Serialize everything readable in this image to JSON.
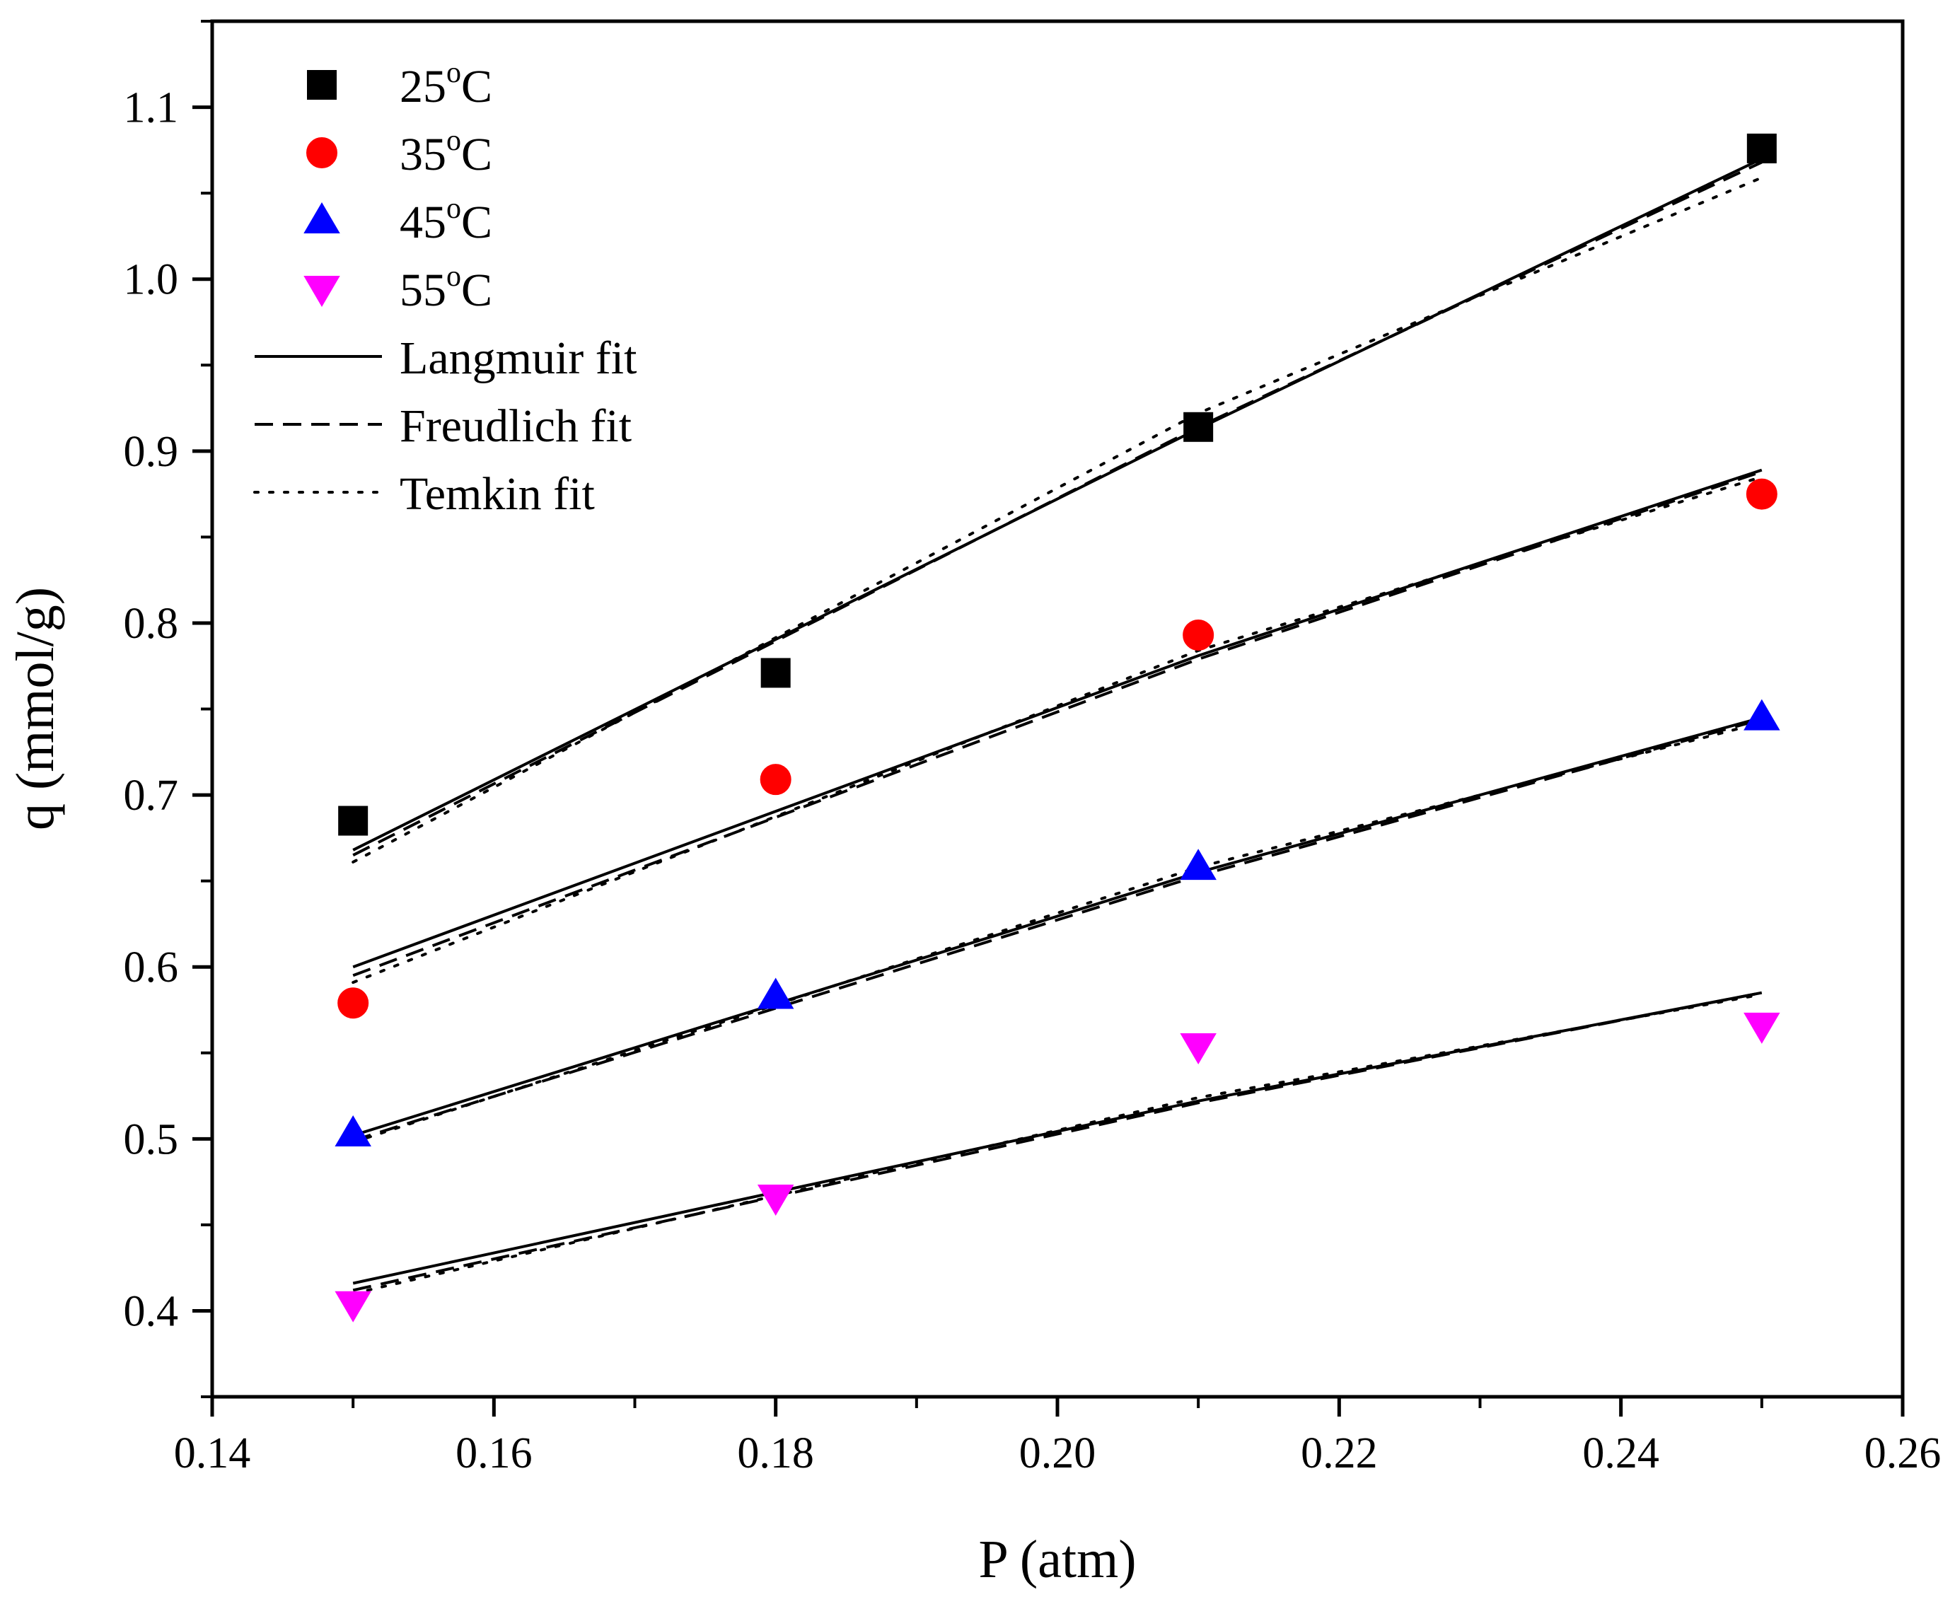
{
  "chart_data": {
    "type": "scatter",
    "title": "",
    "xlabel": "P (atm)",
    "ylabel": "q (mmol/g)",
    "xlim": [
      0.14,
      0.26
    ],
    "ylim": [
      0.35,
      1.15
    ],
    "xticks": [
      0.14,
      0.16,
      0.18,
      0.2,
      0.22,
      0.24,
      0.26
    ],
    "xtick_labels": [
      "0.14",
      "0.16",
      "0.18",
      "0.20",
      "0.22",
      "0.24",
      "0.26"
    ],
    "yticks": [
      0.4,
      0.5,
      0.6,
      0.7,
      0.8,
      0.9,
      1.0,
      1.1
    ],
    "ytick_labels": [
      "0.4",
      "0.5",
      "0.6",
      "0.7",
      "0.8",
      "0.9",
      "1.0",
      "1.1"
    ],
    "grid": false,
    "legend_position": "top-left",
    "x": [
      0.15,
      0.18,
      0.21,
      0.25
    ],
    "series": [
      {
        "name": "25",
        "unit": "oC",
        "unit_sup": "o",
        "unit_suffix": "C",
        "marker": "square",
        "color": "#000000",
        "values": [
          0.685,
          0.771,
          0.914,
          1.076
        ]
      },
      {
        "name": "35",
        "unit": "oC",
        "unit_sup": "o",
        "unit_suffix": "C",
        "marker": "circle",
        "color": "#ff0000",
        "values": [
          0.579,
          0.709,
          0.793,
          0.875
        ]
      },
      {
        "name": "45",
        "unit": "oC",
        "unit_sup": "o",
        "unit_suffix": "C",
        "marker": "triangle-up",
        "color": "#0000ff",
        "values": [
          0.503,
          0.583,
          0.658,
          0.745
        ]
      },
      {
        "name": "55",
        "unit": "oC",
        "unit_sup": "o",
        "unit_suffix": "C",
        "marker": "triangle-down",
        "color": "#ff00ff",
        "values": [
          0.404,
          0.466,
          0.554,
          0.566
        ]
      }
    ],
    "fits": [
      {
        "name": "Langmuir fit",
        "style": "solid",
        "lines": [
          {
            "series": "25",
            "x": [
              0.15,
              0.21,
              0.25
            ],
            "y": [
              0.668,
              0.913,
              1.07
            ]
          },
          {
            "series": "35",
            "x": [
              0.15,
              0.21,
              0.25
            ],
            "y": [
              0.6,
              0.781,
              0.889
            ]
          },
          {
            "series": "45",
            "x": [
              0.15,
              0.21,
              0.25
            ],
            "y": [
              0.502,
              0.655,
              0.745
            ]
          },
          {
            "series": "55",
            "x": [
              0.15,
              0.21,
              0.25
            ],
            "y": [
              0.416,
              0.522,
              0.585
            ]
          }
        ]
      },
      {
        "name": "Freudlich fit",
        "style": "dashed",
        "lines": [
          {
            "series": "25",
            "x": [
              0.15,
              0.21,
              0.25
            ],
            "y": [
              0.665,
              0.914,
              1.068
            ]
          },
          {
            "series": "35",
            "x": [
              0.15,
              0.21,
              0.25
            ],
            "y": [
              0.595,
              0.779,
              0.888
            ]
          },
          {
            "series": "45",
            "x": [
              0.15,
              0.21,
              0.25
            ],
            "y": [
              0.499,
              0.653,
              0.744
            ]
          },
          {
            "series": "55",
            "x": [
              0.15,
              0.21,
              0.25
            ],
            "y": [
              0.412,
              0.521,
              0.585
            ]
          }
        ]
      },
      {
        "name": "Temkin fit",
        "style": "dotted",
        "lines": [
          {
            "series": "25",
            "x": [
              0.15,
              0.21,
              0.25
            ],
            "y": [
              0.661,
              0.922,
              1.059
            ]
          },
          {
            "series": "35",
            "x": [
              0.15,
              0.21,
              0.25
            ],
            "y": [
              0.591,
              0.784,
              0.885
            ]
          },
          {
            "series": "45",
            "x": [
              0.15,
              0.21,
              0.25
            ],
            "y": [
              0.498,
              0.658,
              0.742
            ]
          },
          {
            "series": "55",
            "x": [
              0.15,
              0.21,
              0.25
            ],
            "y": [
              0.41,
              0.524,
              0.584
            ]
          }
        ]
      }
    ]
  }
}
